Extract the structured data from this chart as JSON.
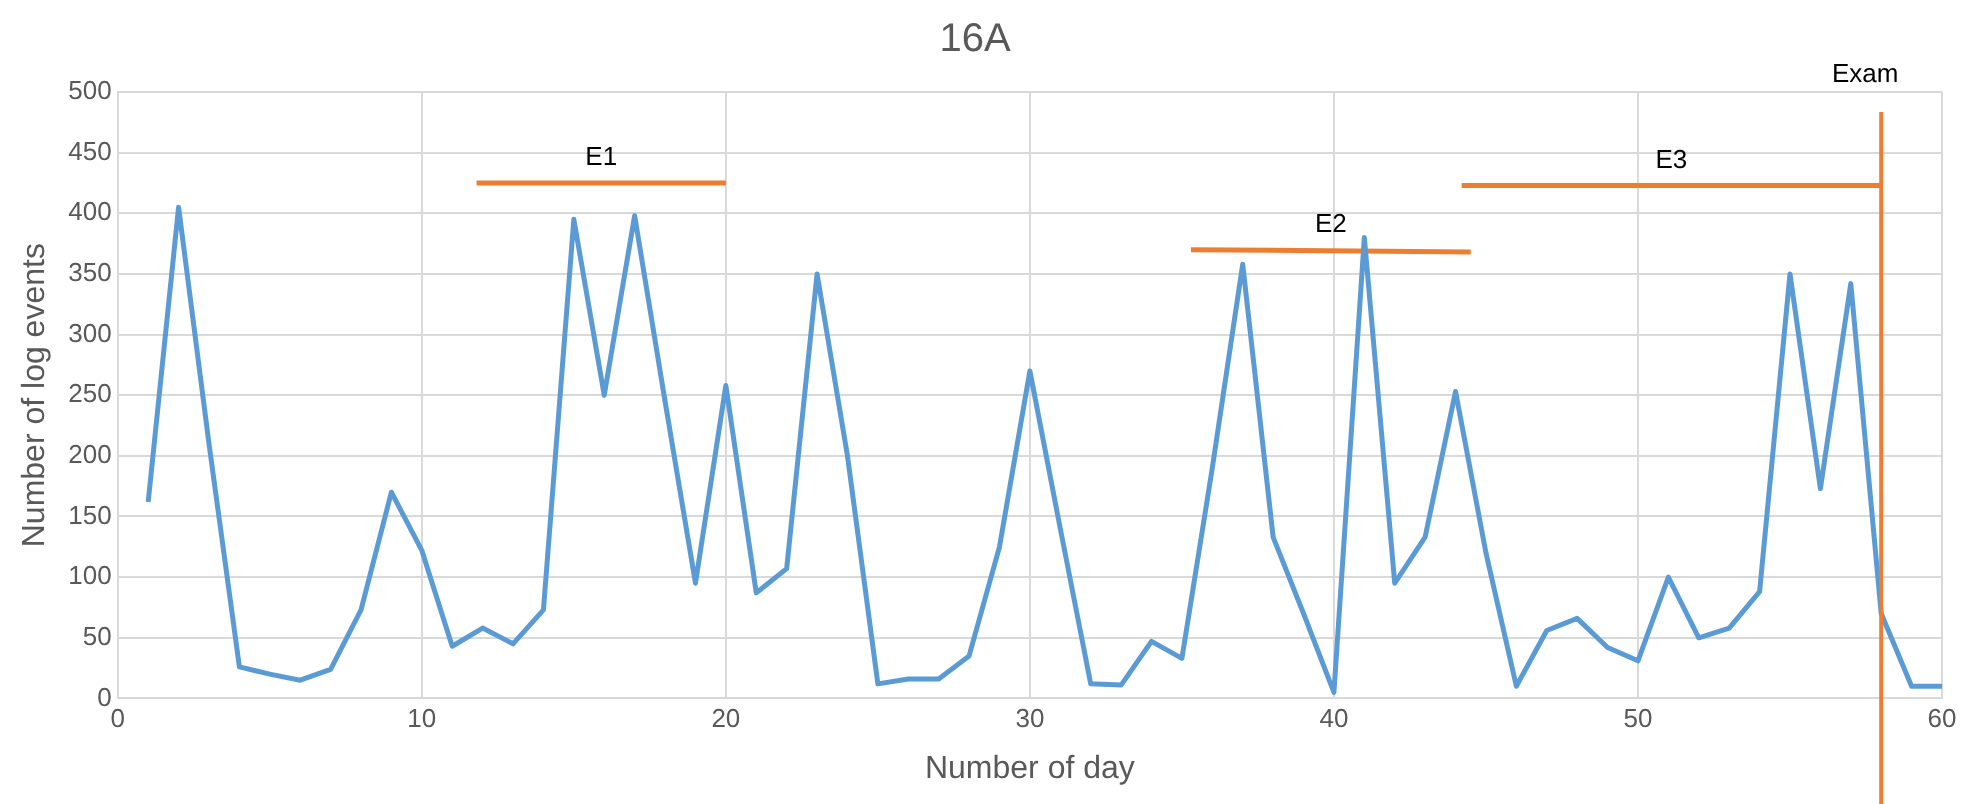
{
  "chart_data": {
    "type": "line",
    "title": "16A",
    "xlabel": "Number of day",
    "ylabel": "Number of log events",
    "x": [
      1,
      2,
      3,
      4,
      5,
      6,
      7,
      8,
      9,
      10,
      11,
      12,
      13,
      14,
      15,
      16,
      17,
      18,
      19,
      20,
      21,
      22,
      23,
      24,
      25,
      26,
      27,
      28,
      29,
      30,
      31,
      32,
      33,
      34,
      35,
      36,
      37,
      38,
      39,
      40,
      41,
      42,
      43,
      44,
      45,
      46,
      47,
      48,
      49,
      50,
      51,
      52,
      53,
      54,
      55,
      56,
      57,
      58,
      59,
      60
    ],
    "series": [
      {
        "color": "#5b9bd5",
        "values": [
          162,
          405,
          210,
          26,
          20,
          15,
          24,
          73,
          170,
          122,
          43,
          58,
          45,
          73,
          395,
          250,
          398,
          245,
          95,
          258,
          87,
          107,
          350,
          200,
          12,
          16,
          16,
          35,
          125,
          270,
          140,
          12,
          11,
          47,
          33,
          190,
          358,
          133,
          70,
          5,
          380,
          95,
          133,
          253,
          120,
          10,
          56,
          66,
          42,
          31,
          100,
          50,
          58,
          88,
          350,
          173,
          342,
          70,
          10,
          10
        ]
      },
      {
        "name": "E1",
        "type": "line",
        "color": "#ed7d31",
        "x": [
          11.8,
          20
        ],
        "values": [
          425,
          425
        ]
      },
      {
        "name": "E2",
        "type": "line",
        "color": "#ed7d31",
        "x": [
          35.3,
          44.5
        ],
        "values": [
          370,
          368
        ]
      },
      {
        "name": "E3",
        "type": "line",
        "color": "#ed7d31",
        "x": [
          44.2,
          58
        ],
        "values": [
          423,
          423
        ]
      }
    ],
    "ref_lines": [
      {
        "axis": "x",
        "value": 58,
        "label": "Exam",
        "color": "#ed7d31"
      }
    ],
    "xlim": [
      0,
      60
    ],
    "xticks": [
      0,
      10,
      20,
      30,
      40,
      50,
      60
    ],
    "ylim": [
      0,
      500
    ],
    "yticks": [
      0,
      50,
      100,
      150,
      200,
      250,
      300,
      350,
      400,
      450,
      500
    ],
    "grid": true,
    "legend": false,
    "marker": "none",
    "line_style": "solid"
  }
}
